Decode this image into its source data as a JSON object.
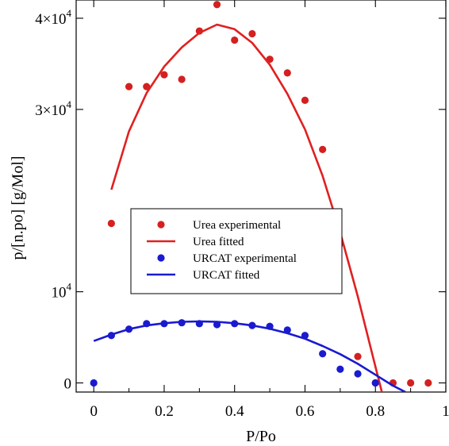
{
  "chart_data": {
    "type": "scatter",
    "xlabel": "P/Po",
    "ylabel": "p/[n.po] [g/Mol]",
    "xlim": [
      -0.05,
      1.0
    ],
    "ylim": [
      -1000,
      42000
    ],
    "x_ticks": [
      0,
      0.2,
      0.4,
      0.6,
      0.8,
      1
    ],
    "x_tick_labels": [
      "0",
      "0.2",
      "0.4",
      "0.6",
      "0.8",
      "1"
    ],
    "y_ticks": [
      0,
      10000,
      30000,
      40000
    ],
    "y_tick_labels": [
      {
        "mantissa": "0",
        "exponent": ""
      },
      {
        "mantissa": "10",
        "exponent": "4"
      },
      {
        "mantissa": "3×10",
        "exponent": "4"
      },
      {
        "mantissa": "4×10",
        "exponent": "4"
      }
    ],
    "grid": false,
    "legend_position": "center",
    "series": [
      {
        "name": "Urea experimental",
        "kind": "scatter",
        "color": "#d42020",
        "x": [
          0.05,
          0.1,
          0.15,
          0.2,
          0.25,
          0.3,
          0.35,
          0.4,
          0.45,
          0.5,
          0.55,
          0.6,
          0.65,
          0.7,
          0.75,
          0.8,
          0.85,
          0.9,
          0.95
        ],
        "y": [
          17500,
          32500,
          32500,
          33800,
          33300,
          38600,
          41500,
          37600,
          38300,
          35500,
          34000,
          31000,
          25600,
          15300,
          2900,
          0,
          0,
          0,
          0
        ]
      },
      {
        "name": "Urea fitted",
        "kind": "line",
        "color": "#e02020",
        "x": [
          0.05,
          0.1,
          0.15,
          0.2,
          0.25,
          0.3,
          0.35,
          0.4,
          0.45,
          0.5,
          0.55,
          0.6,
          0.65,
          0.7,
          0.75,
          0.8,
          0.825
        ],
        "y": [
          21200,
          27600,
          31800,
          34700,
          36800,
          38400,
          39300,
          38800,
          37300,
          34900,
          31700,
          27800,
          22700,
          16500,
          9500,
          1800,
          -2000
        ]
      },
      {
        "name": "URCAT experimental",
        "kind": "scatter",
        "color": "#1a1ad0",
        "x": [
          0,
          0.05,
          0.1,
          0.15,
          0.2,
          0.25,
          0.3,
          0.35,
          0.4,
          0.45,
          0.5,
          0.55,
          0.6,
          0.65,
          0.7,
          0.75,
          0.8
        ],
        "y": [
          0,
          5200,
          5900,
          6500,
          6500,
          6600,
          6500,
          6400,
          6500,
          6300,
          6200,
          5800,
          5200,
          3200,
          1500,
          1000,
          0
        ]
      },
      {
        "name": "URCAT fitted",
        "kind": "line",
        "color": "#1a1ad0",
        "x": [
          0,
          0.05,
          0.1,
          0.15,
          0.2,
          0.25,
          0.3,
          0.35,
          0.4,
          0.45,
          0.5,
          0.55,
          0.6,
          0.65,
          0.7,
          0.75,
          0.8,
          0.85,
          0.885
        ],
        "y": [
          4600,
          5300,
          5900,
          6300,
          6550,
          6700,
          6750,
          6700,
          6550,
          6300,
          5950,
          5450,
          4850,
          4050,
          3150,
          2100,
          900,
          -300,
          -1000
        ]
      }
    ]
  }
}
